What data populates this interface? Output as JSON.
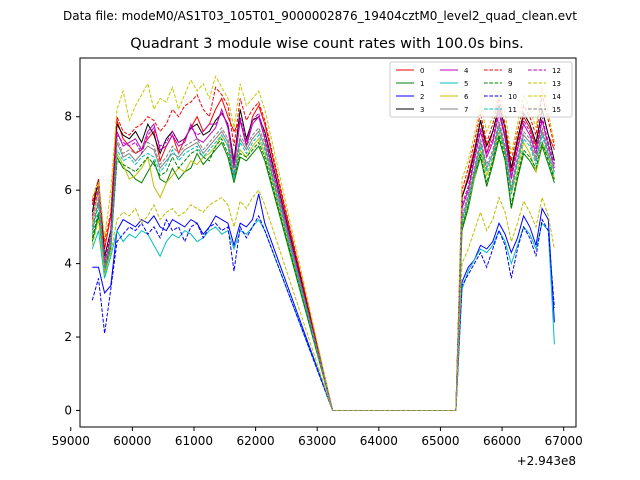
{
  "chart_data": {
    "type": "line",
    "header": "Data file: modeM0/AS1T03_105T01_9000002876_19404cztM0_level2_quad_clean.evt",
    "title": "Quadrant 3 module wise count rates with 100.0s bins.",
    "xlabel": "",
    "ylabel": "",
    "offset_label": "+2.943e8",
    "xlim": [
      59150,
      67200
    ],
    "ylim": [
      -0.45,
      9.6
    ],
    "x_ticks": [
      59000,
      60000,
      61000,
      62000,
      63000,
      64000,
      65000,
      66000,
      67000
    ],
    "x_tick_labels": [
      "59000",
      "60000",
      "61000",
      "62000",
      "63000",
      "64000",
      "65000",
      "66000",
      "67000"
    ],
    "y_ticks": [
      0,
      2,
      4,
      6,
      8
    ],
    "y_tick_labels": [
      "0",
      "2",
      "4",
      "6",
      "8"
    ],
    "legend_position": "top-right",
    "bin_seconds": 100,
    "x_start": 59350,
    "gap": {
      "start": 63250,
      "end": 65250
    },
    "segment2_end": 66850,
    "series": [
      {
        "name": "0",
        "color": "#ff0000",
        "dash": "solid",
        "a": [
          5.6,
          6.2,
          4.4,
          5.3,
          7.9,
          7.4,
          7.2,
          7.0,
          7.1,
          7.4,
          7.6,
          6.8,
          7.2,
          7.5,
          7.0,
          7.4,
          7.7,
          8.0,
          7.6,
          7.8,
          8.2,
          8.5,
          8.0,
          7.6,
          7.9,
          7.2,
          8.0,
          8.3,
          7.8
        ],
        "b": [
          5.8,
          6.4,
          7.1,
          7.9,
          7.0,
          7.6,
          8.2,
          7.5,
          6.5,
          7.3,
          8.0,
          7.7,
          7.2,
          8.2,
          7.5,
          7.1
        ]
      },
      {
        "name": "1",
        "color": "#008000",
        "dash": "solid",
        "a": [
          4.6,
          5.3,
          3.8,
          4.4,
          6.9,
          6.6,
          6.5,
          6.3,
          6.2,
          6.5,
          6.8,
          6.3,
          6.2,
          6.6,
          6.3,
          6.5,
          6.6,
          7.0,
          6.7,
          6.9,
          7.1,
          7.3,
          6.9,
          6.2,
          6.9,
          6.8,
          7.0,
          7.2,
          6.8
        ],
        "b": [
          4.9,
          5.5,
          6.3,
          6.9,
          6.1,
          6.7,
          7.4,
          6.8,
          5.5,
          6.3,
          7.0,
          6.8,
          6.5,
          7.2,
          6.7,
          6.2
        ]
      },
      {
        "name": "2",
        "color": "#0000ff",
        "dash": "solid",
        "a": [
          3.9,
          3.9,
          3.2,
          3.4,
          4.9,
          5.2,
          5.1,
          5.0,
          5.2,
          5.1,
          5.3,
          5.0,
          4.9,
          5.2,
          5.1,
          5.0,
          5.2,
          5.1,
          4.8,
          5.0,
          5.3,
          5.2,
          5.1,
          4.5,
          5.1,
          5.0,
          5.2,
          5.9,
          5.1
        ],
        "b": [
          3.5,
          3.9,
          4.1,
          4.5,
          4.4,
          4.6,
          5.1,
          4.8,
          4.3,
          4.7,
          5.3,
          5.0,
          4.5,
          5.5,
          5.2,
          2.4
        ]
      },
      {
        "name": "3",
        "color": "#000000",
        "dash": "solid",
        "a": [
          5.4,
          6.3,
          4.2,
          4.9,
          7.8,
          7.5,
          7.4,
          7.6,
          7.3,
          7.8,
          7.5,
          7.0,
          7.4,
          7.6,
          7.3,
          7.4,
          7.7,
          7.8,
          7.5,
          7.6,
          7.9,
          8.1,
          7.8,
          6.8,
          8.2,
          7.4,
          7.9,
          8.0,
          7.6
        ],
        "b": [
          5.8,
          6.3,
          7.0,
          7.9,
          7.2,
          7.6,
          8.3,
          7.7,
          6.6,
          7.4,
          8.1,
          7.8,
          7.3,
          8.2,
          7.5,
          6.8
        ]
      },
      {
        "name": "4",
        "color": "#bf00bf",
        "dash": "solid",
        "a": [
          5.2,
          6.0,
          4.0,
          4.7,
          7.6,
          7.2,
          7.3,
          7.4,
          7.1,
          7.6,
          7.8,
          7.1,
          7.2,
          7.5,
          7.2,
          7.3,
          7.8,
          7.4,
          7.3,
          7.5,
          7.7,
          8.2,
          7.7,
          6.6,
          7.9,
          7.2,
          7.8,
          8.0,
          7.4
        ],
        "b": [
          5.5,
          6.0,
          6.8,
          7.6,
          6.9,
          7.3,
          8.1,
          7.4,
          6.3,
          7.1,
          7.8,
          7.5,
          7.0,
          7.9,
          7.2,
          6.6
        ]
      },
      {
        "name": "5",
        "color": "#00bfbf",
        "dash": "solid",
        "a": [
          4.4,
          4.9,
          3.6,
          4.2,
          4.9,
          4.6,
          4.8,
          4.7,
          4.9,
          4.8,
          4.5,
          4.2,
          4.6,
          4.8,
          4.7,
          4.9,
          4.8,
          4.6,
          4.7,
          4.9,
          5.0,
          4.8,
          4.9,
          4.4,
          4.9,
          4.8,
          5.0,
          5.2,
          4.9
        ],
        "b": [
          3.3,
          3.8,
          4.1,
          4.4,
          4.3,
          4.5,
          4.9,
          4.6,
          4.0,
          4.5,
          5.0,
          4.8,
          4.4,
          5.1,
          4.9,
          1.8
        ]
      },
      {
        "name": "6",
        "color": "#bfbf00",
        "dash": "solid",
        "a": [
          5.1,
          6.1,
          3.9,
          4.6,
          7.0,
          6.7,
          6.3,
          6.4,
          6.6,
          6.9,
          6.1,
          5.8,
          6.2,
          6.4,
          6.6,
          6.5,
          6.8,
          6.7,
          6.9,
          7.0,
          7.2,
          7.5,
          7.2,
          6.3,
          7.1,
          6.9,
          7.2,
          7.4,
          7.0
        ],
        "b": [
          5.0,
          5.6,
          6.3,
          7.1,
          6.4,
          6.8,
          7.6,
          7.0,
          5.9,
          6.5,
          7.3,
          7.0,
          6.5,
          7.3,
          6.9,
          6.3
        ]
      },
      {
        "name": "7",
        "color": "#808080",
        "dash": "solid",
        "a": [
          4.9,
          5.7,
          3.8,
          4.5,
          7.3,
          6.9,
          7.0,
          6.8,
          7.0,
          7.2,
          7.1,
          6.6,
          6.8,
          7.0,
          6.9,
          7.1,
          7.2,
          7.3,
          7.0,
          7.2,
          7.4,
          7.6,
          7.3,
          6.4,
          7.4,
          7.1,
          7.4,
          7.6,
          7.2
        ],
        "b": [
          5.2,
          5.8,
          6.5,
          7.3,
          6.6,
          7.0,
          7.8,
          7.1,
          6.0,
          6.8,
          7.5,
          7.3,
          6.8,
          7.6,
          7.0,
          6.5
        ]
      },
      {
        "name": "8",
        "color": "#ff0000",
        "dash": "dashed",
        "a": [
          5.7,
          6.3,
          4.6,
          5.4,
          8.0,
          7.6,
          7.5,
          7.7,
          7.8,
          8.0,
          7.9,
          7.6,
          7.8,
          8.2,
          8.0,
          8.3,
          8.4,
          8.6,
          8.2,
          8.0,
          8.8,
          8.6,
          8.3,
          7.2,
          8.5,
          7.9,
          8.2,
          8.4,
          7.9
        ],
        "b": [
          6.0,
          6.6,
          7.3,
          8.1,
          7.3,
          7.8,
          8.5,
          7.8,
          6.8,
          7.6,
          8.3,
          8.0,
          7.5,
          8.6,
          7.9,
          7.2
        ]
      },
      {
        "name": "9",
        "color": "#008000",
        "dash": "dashed",
        "a": [
          4.7,
          5.4,
          3.9,
          4.5,
          6.8,
          6.7,
          6.6,
          6.5,
          6.7,
          6.9,
          6.7,
          6.4,
          6.5,
          6.9,
          6.6,
          6.8,
          7.0,
          7.1,
          6.9,
          6.8,
          7.2,
          7.4,
          7.0,
          6.3,
          7.0,
          6.9,
          7.1,
          7.3,
          6.9
        ],
        "b": [
          5.0,
          5.6,
          6.4,
          7.0,
          6.2,
          6.8,
          7.5,
          6.9,
          5.6,
          6.4,
          7.1,
          6.9,
          6.6,
          7.3,
          6.8,
          6.3
        ]
      },
      {
        "name": "10",
        "color": "#0000ff",
        "dash": "dashed",
        "a": [
          3.0,
          3.6,
          2.1,
          3.3,
          4.6,
          4.8,
          5.0,
          4.9,
          5.1,
          4.8,
          5.0,
          4.7,
          5.2,
          4.9,
          5.0,
          4.6,
          5.0,
          5.1,
          4.7,
          5.0,
          5.1,
          4.9,
          5.0,
          3.8,
          5.0,
          4.7,
          5.0,
          5.3,
          4.9
        ],
        "b": [
          3.4,
          3.7,
          4.0,
          4.3,
          3.9,
          4.4,
          4.9,
          4.5,
          3.6,
          4.4,
          5.0,
          4.7,
          4.2,
          5.2,
          4.9,
          2.8
        ]
      },
      {
        "name": "11",
        "color": "#00bfbf",
        "dash": "dashed",
        "a": [
          4.8,
          5.6,
          3.7,
          4.4,
          7.1,
          6.8,
          6.9,
          6.7,
          6.9,
          7.0,
          6.9,
          6.5,
          6.7,
          7.1,
          6.8,
          7.0,
          7.1,
          7.2,
          6.9,
          7.1,
          7.3,
          7.5,
          7.2,
          6.3,
          7.3,
          7.0,
          7.3,
          7.5,
          7.1
        ],
        "b": [
          5.1,
          5.7,
          6.4,
          7.2,
          6.5,
          6.9,
          7.7,
          7.0,
          5.9,
          6.7,
          7.4,
          7.2,
          6.7,
          7.5,
          6.9,
          6.4
        ]
      },
      {
        "name": "12",
        "color": "#bf00bf",
        "dash": "dashed",
        "a": [
          5.3,
          6.1,
          4.1,
          4.8,
          7.5,
          7.3,
          7.2,
          7.3,
          7.0,
          7.5,
          7.7,
          7.2,
          7.3,
          7.6,
          7.3,
          7.4,
          7.7,
          7.5,
          7.6,
          7.8,
          7.8,
          8.1,
          7.8,
          6.7,
          8.0,
          7.3,
          7.9,
          8.1,
          7.5
        ],
        "b": [
          5.6,
          6.1,
          6.9,
          7.7,
          7.0,
          7.4,
          8.2,
          7.5,
          6.4,
          7.2,
          7.9,
          7.6,
          7.1,
          8.0,
          7.3,
          6.7
        ]
      },
      {
        "name": "13",
        "color": "#bfbf00",
        "dash": "dashed",
        "a": [
          4.5,
          5.2,
          3.7,
          4.3,
          5.2,
          5.4,
          5.3,
          5.5,
          5.1,
          5.3,
          5.6,
          5.2,
          5.4,
          5.5,
          5.3,
          5.4,
          5.6,
          5.5,
          5.4,
          5.6,
          5.7,
          5.8,
          5.6,
          5.0,
          5.7,
          5.5,
          5.8,
          6.0,
          5.6
        ],
        "b": [
          4.0,
          4.4,
          4.9,
          5.4,
          4.9,
          5.2,
          5.8,
          5.4,
          4.6,
          5.1,
          5.7,
          5.4,
          5.0,
          5.8,
          5.3,
          4.4
        ]
      },
      {
        "name": "14",
        "color": "#c8c800",
        "dash": "dashed",
        "a": [
          5.8,
          6.2,
          4.7,
          6.0,
          8.2,
          8.7,
          7.9,
          8.3,
          8.6,
          8.9,
          8.2,
          8.5,
          8.4,
          8.8,
          8.2,
          8.6,
          9.0,
          8.7,
          8.9,
          8.5,
          9.1,
          8.8,
          8.5,
          7.7,
          8.9,
          8.3,
          8.5,
          8.7,
          8.2
        ],
        "b": [
          6.3,
          6.8,
          7.5,
          8.3,
          7.6,
          8.0,
          8.7,
          8.1,
          7.0,
          7.8,
          8.6,
          8.2,
          7.7,
          8.8,
          8.1,
          7.3
        ]
      },
      {
        "name": "15",
        "color": "#808080",
        "dash": "dashed",
        "a": [
          5.0,
          5.8,
          3.9,
          4.6,
          7.4,
          7.0,
          7.1,
          7.0,
          7.2,
          7.3,
          7.2,
          6.7,
          6.9,
          7.2,
          7.0,
          7.2,
          7.3,
          7.4,
          7.1,
          7.3,
          7.5,
          7.7,
          7.4,
          6.5,
          7.5,
          7.2,
          7.5,
          7.7,
          7.3
        ],
        "b": [
          5.3,
          5.9,
          6.6,
          7.4,
          6.7,
          7.1,
          7.9,
          7.2,
          6.1,
          6.9,
          7.6,
          7.4,
          6.9,
          7.7,
          7.1,
          6.6
        ]
      }
    ]
  }
}
